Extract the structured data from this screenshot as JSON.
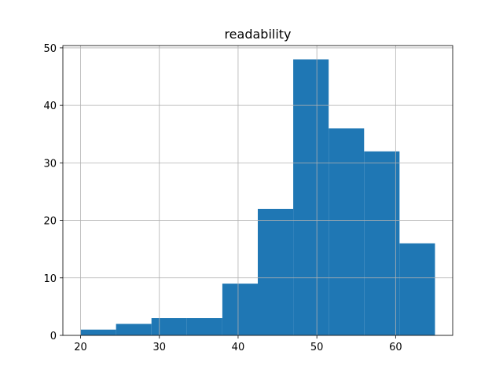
{
  "chart_data": {
    "type": "histogram",
    "title": "readability",
    "bins": [
      20,
      24.5,
      29,
      33.5,
      38,
      42.5,
      47,
      51.5,
      56,
      60.5,
      65
    ],
    "counts": [
      1,
      2,
      3,
      3,
      9,
      22,
      48,
      36,
      32,
      16
    ],
    "color": "#1f77b4",
    "xlim": [
      17.75,
      67.25
    ],
    "xticks": [
      20,
      30,
      40,
      50,
      60
    ],
    "ylim": [
      0,
      50.4
    ],
    "yticks": [
      0,
      10,
      20,
      30,
      40,
      50
    ],
    "grid": true
  }
}
